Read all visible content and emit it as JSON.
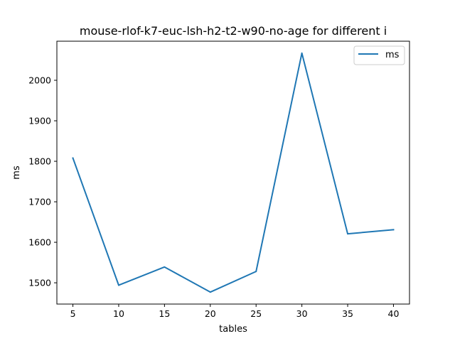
{
  "chart_data": {
    "type": "line",
    "title": "mouse-rlof-k7-euc-lsh-h2-t2-w90-no-age for different i",
    "xlabel": "tables",
    "ylabel": "ms",
    "x": [
      5,
      10,
      15,
      20,
      25,
      30,
      35,
      40
    ],
    "series": [
      {
        "name": "ms",
        "color": "#1f77b4",
        "values": [
          1808,
          1494,
          1539,
          1477,
          1528,
          2067,
          1621,
          1631
        ]
      }
    ],
    "xlim": [
      3.25,
      41.75
    ],
    "ylim": [
      1447.5,
      2096.5
    ],
    "xticks": [
      5,
      10,
      15,
      20,
      25,
      30,
      35,
      40
    ],
    "yticks": [
      1500,
      1600,
      1700,
      1800,
      1900,
      2000
    ],
    "grid": false,
    "legend_position": "top-right"
  }
}
